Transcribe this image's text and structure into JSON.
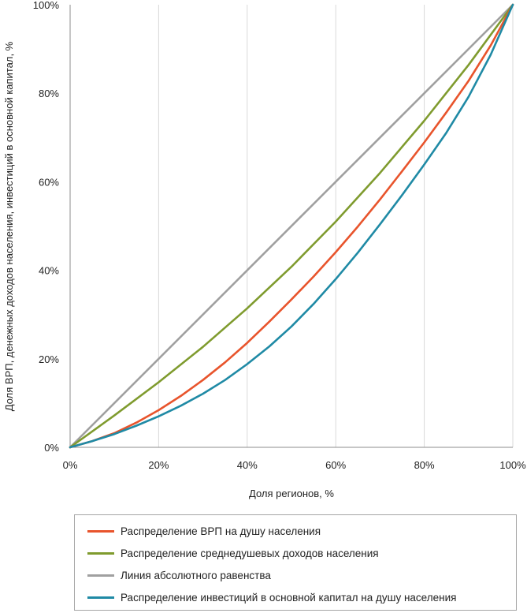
{
  "chart_data": {
    "type": "line",
    "title": "",
    "xlabel": "Доля регионов, %",
    "ylabel": "Доля ВРП, денежных доходов населения, инвестиций в основной капитал, %",
    "xlim": [
      0,
      100
    ],
    "ylim": [
      0,
      100
    ],
    "x_ticks": [
      "0%",
      "20%",
      "40%",
      "60%",
      "80%",
      "100%"
    ],
    "y_ticks": [
      "0%",
      "20%",
      "40%",
      "60%",
      "80%",
      "100%"
    ],
    "grid": "vertical",
    "legend_position": "bottom",
    "series": [
      {
        "name": "Распределение ВРП на душу населения",
        "color": "#e8542c",
        "points": [
          [
            0,
            0
          ],
          [
            5,
            1.4
          ],
          [
            10,
            3.2
          ],
          [
            15,
            5.6
          ],
          [
            20,
            8.4
          ],
          [
            25,
            11.6
          ],
          [
            30,
            15.2
          ],
          [
            35,
            19.2
          ],
          [
            40,
            23.6
          ],
          [
            45,
            28.4
          ],
          [
            50,
            33.4
          ],
          [
            55,
            38.6
          ],
          [
            60,
            44.1
          ],
          [
            65,
            49.9
          ],
          [
            70,
            56.0
          ],
          [
            75,
            62.4
          ],
          [
            80,
            68.9
          ],
          [
            85,
            75.7
          ],
          [
            90,
            82.8
          ],
          [
            95,
            90.8
          ],
          [
            100,
            100
          ]
        ]
      },
      {
        "name": "Распределение среднедушевых доходов населения",
        "color": "#7f9b2e",
        "points": [
          [
            0,
            0
          ],
          [
            10,
            7.2
          ],
          [
            20,
            14.7
          ],
          [
            30,
            22.7
          ],
          [
            40,
            31.4
          ],
          [
            50,
            40.8
          ],
          [
            60,
            51.0
          ],
          [
            70,
            62.0
          ],
          [
            80,
            73.8
          ],
          [
            90,
            86.4
          ],
          [
            100,
            100
          ]
        ]
      },
      {
        "name": "Линия абсолютного равенства",
        "color": "#a0a0a0",
        "points": [
          [
            0,
            0
          ],
          [
            100,
            100
          ]
        ]
      },
      {
        "name": "Распределение инвестиций в основной капитал на душу населения",
        "color": "#1f8aa5",
        "points": [
          [
            0,
            0
          ],
          [
            5,
            1.4
          ],
          [
            10,
            3.0
          ],
          [
            15,
            4.9
          ],
          [
            20,
            7.0
          ],
          [
            25,
            9.4
          ],
          [
            30,
            12.1
          ],
          [
            35,
            15.2
          ],
          [
            40,
            18.8
          ],
          [
            45,
            22.8
          ],
          [
            50,
            27.3
          ],
          [
            55,
            32.4
          ],
          [
            60,
            38.0
          ],
          [
            65,
            44.0
          ],
          [
            70,
            50.4
          ],
          [
            75,
            57.0
          ],
          [
            80,
            63.9
          ],
          [
            85,
            71.1
          ],
          [
            90,
            79.2
          ],
          [
            95,
            88.7
          ],
          [
            100,
            100
          ]
        ]
      }
    ]
  }
}
